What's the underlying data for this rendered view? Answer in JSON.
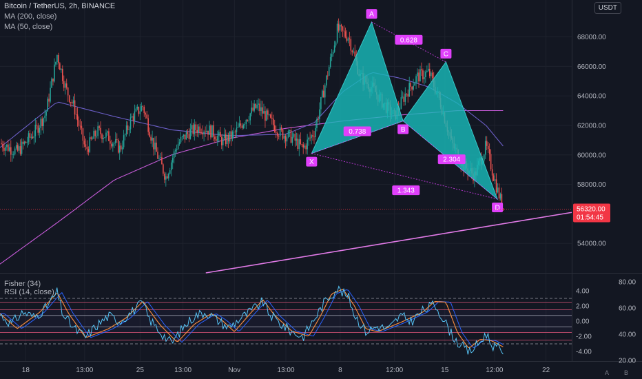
{
  "header": {
    "symbol_line": "Bitcoin / TetherUS, 2h, BINANCE",
    "ma200_label": "MA (200, close)",
    "ma50_label": "MA (50, close)",
    "currency_badge": "USDT"
  },
  "oscillator": {
    "fisher_label": "Fisher (34)",
    "rsi_label": "RSI (14, close)"
  },
  "chart_data": [
    {
      "type": "candlestick",
      "title": "Bitcoin / TetherUS, 2h, BINANCE",
      "x_ticks": [
        "18",
        "13:00",
        "25",
        "13:00",
        "Nov",
        "13:00",
        "8",
        "12:00",
        "15",
        "12:00",
        "22"
      ],
      "y_ticks": [
        "54000.00",
        "56000.00",
        "58000.00",
        "60000.00",
        "62000.00",
        "64000.00",
        "66000.00",
        "68000.00"
      ],
      "ylim": [
        52000,
        70500
      ],
      "price_path": [
        {
          "t": 0,
          "v": 60800
        },
        {
          "t": 0.03,
          "v": 60200
        },
        {
          "t": 0.06,
          "v": 61500
        },
        {
          "t": 0.08,
          "v": 62800
        },
        {
          "t": 0.1,
          "v": 66800
        },
        {
          "t": 0.115,
          "v": 64500
        },
        {
          "t": 0.13,
          "v": 63200
        },
        {
          "t": 0.15,
          "v": 60300
        },
        {
          "t": 0.17,
          "v": 61600
        },
        {
          "t": 0.19,
          "v": 61200
        },
        {
          "t": 0.21,
          "v": 60400
        },
        {
          "t": 0.23,
          "v": 62500
        },
        {
          "t": 0.25,
          "v": 63300
        },
        {
          "t": 0.27,
          "v": 60500
        },
        {
          "t": 0.29,
          "v": 58500
        },
        {
          "t": 0.31,
          "v": 60700
        },
        {
          "t": 0.33,
          "v": 61500
        },
        {
          "t": 0.35,
          "v": 61900
        },
        {
          "t": 0.37,
          "v": 61600
        },
        {
          "t": 0.39,
          "v": 60900
        },
        {
          "t": 0.41,
          "v": 61400
        },
        {
          "t": 0.43,
          "v": 62500
        },
        {
          "t": 0.45,
          "v": 63300
        },
        {
          "t": 0.47,
          "v": 62400
        },
        {
          "t": 0.49,
          "v": 61500
        },
        {
          "t": 0.51,
          "v": 61200
        },
        {
          "t": 0.53,
          "v": 60400
        },
        {
          "t": 0.55,
          "v": 61600
        },
        {
          "t": 0.57,
          "v": 65000
        },
        {
          "t": 0.59,
          "v": 68500
        },
        {
          "t": 0.61,
          "v": 68000
        },
        {
          "t": 0.63,
          "v": 65300
        },
        {
          "t": 0.65,
          "v": 64600
        },
        {
          "t": 0.67,
          "v": 63500
        },
        {
          "t": 0.69,
          "v": 62600
        },
        {
          "t": 0.71,
          "v": 64200
        },
        {
          "t": 0.73,
          "v": 65300
        },
        {
          "t": 0.75,
          "v": 65600
        },
        {
          "t": 0.77,
          "v": 63600
        },
        {
          "t": 0.79,
          "v": 60800
        },
        {
          "t": 0.81,
          "v": 59300
        },
        {
          "t": 0.83,
          "v": 58600
        },
        {
          "t": 0.85,
          "v": 60600
        },
        {
          "t": 0.87,
          "v": 57600
        },
        {
          "t": 0.88,
          "v": 56400
        }
      ],
      "ma200_path": [
        {
          "t": 0,
          "v": 52600
        },
        {
          "t": 0.1,
          "v": 55400
        },
        {
          "t": 0.2,
          "v": 58300
        },
        {
          "t": 0.3,
          "v": 60000
        },
        {
          "t": 0.4,
          "v": 61100
        },
        {
          "t": 0.5,
          "v": 61800
        },
        {
          "t": 0.6,
          "v": 62300
        },
        {
          "t": 0.7,
          "v": 62700
        },
        {
          "t": 0.8,
          "v": 63000
        },
        {
          "t": 0.88,
          "v": 63000
        }
      ],
      "ma50_path": [
        {
          "t": 0,
          "v": 60500
        },
        {
          "t": 0.1,
          "v": 63600
        },
        {
          "t": 0.2,
          "v": 62600
        },
        {
          "t": 0.3,
          "v": 61700
        },
        {
          "t": 0.4,
          "v": 61300
        },
        {
          "t": 0.5,
          "v": 61400
        },
        {
          "t": 0.55,
          "v": 62200
        },
        {
          "t": 0.6,
          "v": 64300
        },
        {
          "t": 0.65,
          "v": 65600
        },
        {
          "t": 0.7,
          "v": 65200
        },
        {
          "t": 0.75,
          "v": 64600
        },
        {
          "t": 0.8,
          "v": 63500
        },
        {
          "t": 0.85,
          "v": 62000
        },
        {
          "t": 0.88,
          "v": 60600
        }
      ],
      "trendline": {
        "from": {
          "t": 0.36,
          "v": 52000
        },
        "to": {
          "t": 1.0,
          "v": 56100
        }
      },
      "pattern": {
        "points": [
          {
            "label": "X",
            "t": 0.545,
            "v": 60100
          },
          {
            "label": "A",
            "t": 0.65,
            "v": 69000
          },
          {
            "label": "B",
            "t": 0.705,
            "v": 62300
          },
          {
            "label": "C",
            "t": 0.78,
            "v": 66300
          },
          {
            "label": "D",
            "t": 0.87,
            "v": 57000
          }
        ],
        "ratios": [
          {
            "label": "0.628",
            "t": 0.715,
            "v": 67800
          },
          {
            "label": "0.738",
            "t": 0.625,
            "v": 61600
          },
          {
            "label": "2.304",
            "t": 0.79,
            "v": 59700
          },
          {
            "label": "1.343",
            "t": 0.71,
            "v": 57600
          }
        ]
      },
      "last_price": {
        "value": 56320,
        "label": "56320.00",
        "countdown": "01:54:45"
      },
      "colors": {
        "up": "#26a69a",
        "down": "#ef5350",
        "pattern_fill": "#18b8b8",
        "pattern_label": "#e040fb",
        "ma200": "#c65bd8",
        "ma50": "#6c5fc8",
        "price_label": "#f23645"
      }
    },
    {
      "type": "line",
      "title": "Fisher (34), RSI (14, close)",
      "series": [
        {
          "name": "Fisher (34)",
          "color": "#f0883e"
        },
        {
          "name": "RSI (14, close)",
          "color": "#56c3f4"
        }
      ],
      "fisher_ticks": [
        "4.00",
        "2.00",
        "0.00",
        "-2.00",
        "-4.00"
      ],
      "rsi_ticks": [
        "80.00",
        "60.00",
        "40.00",
        "20.00"
      ],
      "fisher_levels": [
        2.5,
        1.5,
        0.75,
        -0.75,
        -1.5,
        -2.5
      ],
      "dashed_levels": [
        3,
        -3
      ],
      "fisher_path": [
        {
          "t": 0,
          "v": 1.0
        },
        {
          "t": 0.03,
          "v": -1.0
        },
        {
          "t": 0.07,
          "v": 1.2
        },
        {
          "t": 0.1,
          "v": 3.8
        },
        {
          "t": 0.12,
          "v": 1.0
        },
        {
          "t": 0.15,
          "v": -2.2
        },
        {
          "t": 0.19,
          "v": -1.0
        },
        {
          "t": 0.22,
          "v": 0.4
        },
        {
          "t": 0.25,
          "v": 2.6
        },
        {
          "t": 0.28,
          "v": -0.5
        },
        {
          "t": 0.31,
          "v": -2.8
        },
        {
          "t": 0.34,
          "v": -0.4
        },
        {
          "t": 0.37,
          "v": 1.0
        },
        {
          "t": 0.39,
          "v": 0.0
        },
        {
          "t": 0.41,
          "v": -1.4
        },
        {
          "t": 0.44,
          "v": 1.2
        },
        {
          "t": 0.46,
          "v": 2.8
        },
        {
          "t": 0.48,
          "v": 0.8
        },
        {
          "t": 0.51,
          "v": -1.3
        },
        {
          "t": 0.54,
          "v": -2.0
        },
        {
          "t": 0.56,
          "v": 0.6
        },
        {
          "t": 0.58,
          "v": 3.6
        },
        {
          "t": 0.6,
          "v": 4.2
        },
        {
          "t": 0.62,
          "v": 2.0
        },
        {
          "t": 0.64,
          "v": -1.0
        },
        {
          "t": 0.66,
          "v": -1.4
        },
        {
          "t": 0.7,
          "v": -0.2
        },
        {
          "t": 0.74,
          "v": 1.2
        },
        {
          "t": 0.76,
          "v": 2.6
        },
        {
          "t": 0.78,
          "v": 2.5
        },
        {
          "t": 0.8,
          "v": -1.5
        },
        {
          "t": 0.82,
          "v": -3.6
        },
        {
          "t": 0.84,
          "v": -2.4
        },
        {
          "t": 0.86,
          "v": -2.6
        },
        {
          "t": 0.88,
          "v": -3.4
        }
      ],
      "rsi_path": [
        {
          "t": 0,
          "v": 55
        },
        {
          "t": 0.02,
          "v": 48
        },
        {
          "t": 0.04,
          "v": 57
        },
        {
          "t": 0.06,
          "v": 53
        },
        {
          "t": 0.08,
          "v": 60
        },
        {
          "t": 0.1,
          "v": 72
        },
        {
          "t": 0.11,
          "v": 55
        },
        {
          "t": 0.13,
          "v": 44
        },
        {
          "t": 0.15,
          "v": 38
        },
        {
          "t": 0.17,
          "v": 47
        },
        {
          "t": 0.19,
          "v": 54
        },
        {
          "t": 0.21,
          "v": 50
        },
        {
          "t": 0.23,
          "v": 57
        },
        {
          "t": 0.25,
          "v": 64
        },
        {
          "t": 0.26,
          "v": 52
        },
        {
          "t": 0.28,
          "v": 42
        },
        {
          "t": 0.3,
          "v": 33
        },
        {
          "t": 0.32,
          "v": 45
        },
        {
          "t": 0.34,
          "v": 54
        },
        {
          "t": 0.36,
          "v": 57
        },
        {
          "t": 0.38,
          "v": 51
        },
        {
          "t": 0.4,
          "v": 45
        },
        {
          "t": 0.42,
          "v": 52
        },
        {
          "t": 0.44,
          "v": 58
        },
        {
          "t": 0.46,
          "v": 65
        },
        {
          "t": 0.47,
          "v": 56
        },
        {
          "t": 0.49,
          "v": 48
        },
        {
          "t": 0.51,
          "v": 42
        },
        {
          "t": 0.53,
          "v": 38
        },
        {
          "t": 0.55,
          "v": 52
        },
        {
          "t": 0.57,
          "v": 66
        },
        {
          "t": 0.59,
          "v": 75
        },
        {
          "t": 0.61,
          "v": 68
        },
        {
          "t": 0.62,
          "v": 55
        },
        {
          "t": 0.64,
          "v": 42
        },
        {
          "t": 0.66,
          "v": 46
        },
        {
          "t": 0.68,
          "v": 44
        },
        {
          "t": 0.7,
          "v": 54
        },
        {
          "t": 0.72,
          "v": 50
        },
        {
          "t": 0.74,
          "v": 58
        },
        {
          "t": 0.76,
          "v": 63
        },
        {
          "t": 0.77,
          "v": 56
        },
        {
          "t": 0.79,
          "v": 40
        },
        {
          "t": 0.8,
          "v": 34
        },
        {
          "t": 0.82,
          "v": 26
        },
        {
          "t": 0.84,
          "v": 34
        },
        {
          "t": 0.85,
          "v": 41
        },
        {
          "t": 0.86,
          "v": 32
        },
        {
          "t": 0.88,
          "v": 27
        }
      ]
    }
  ],
  "scale_buttons": {
    "auto": "A",
    "log": "B"
  }
}
